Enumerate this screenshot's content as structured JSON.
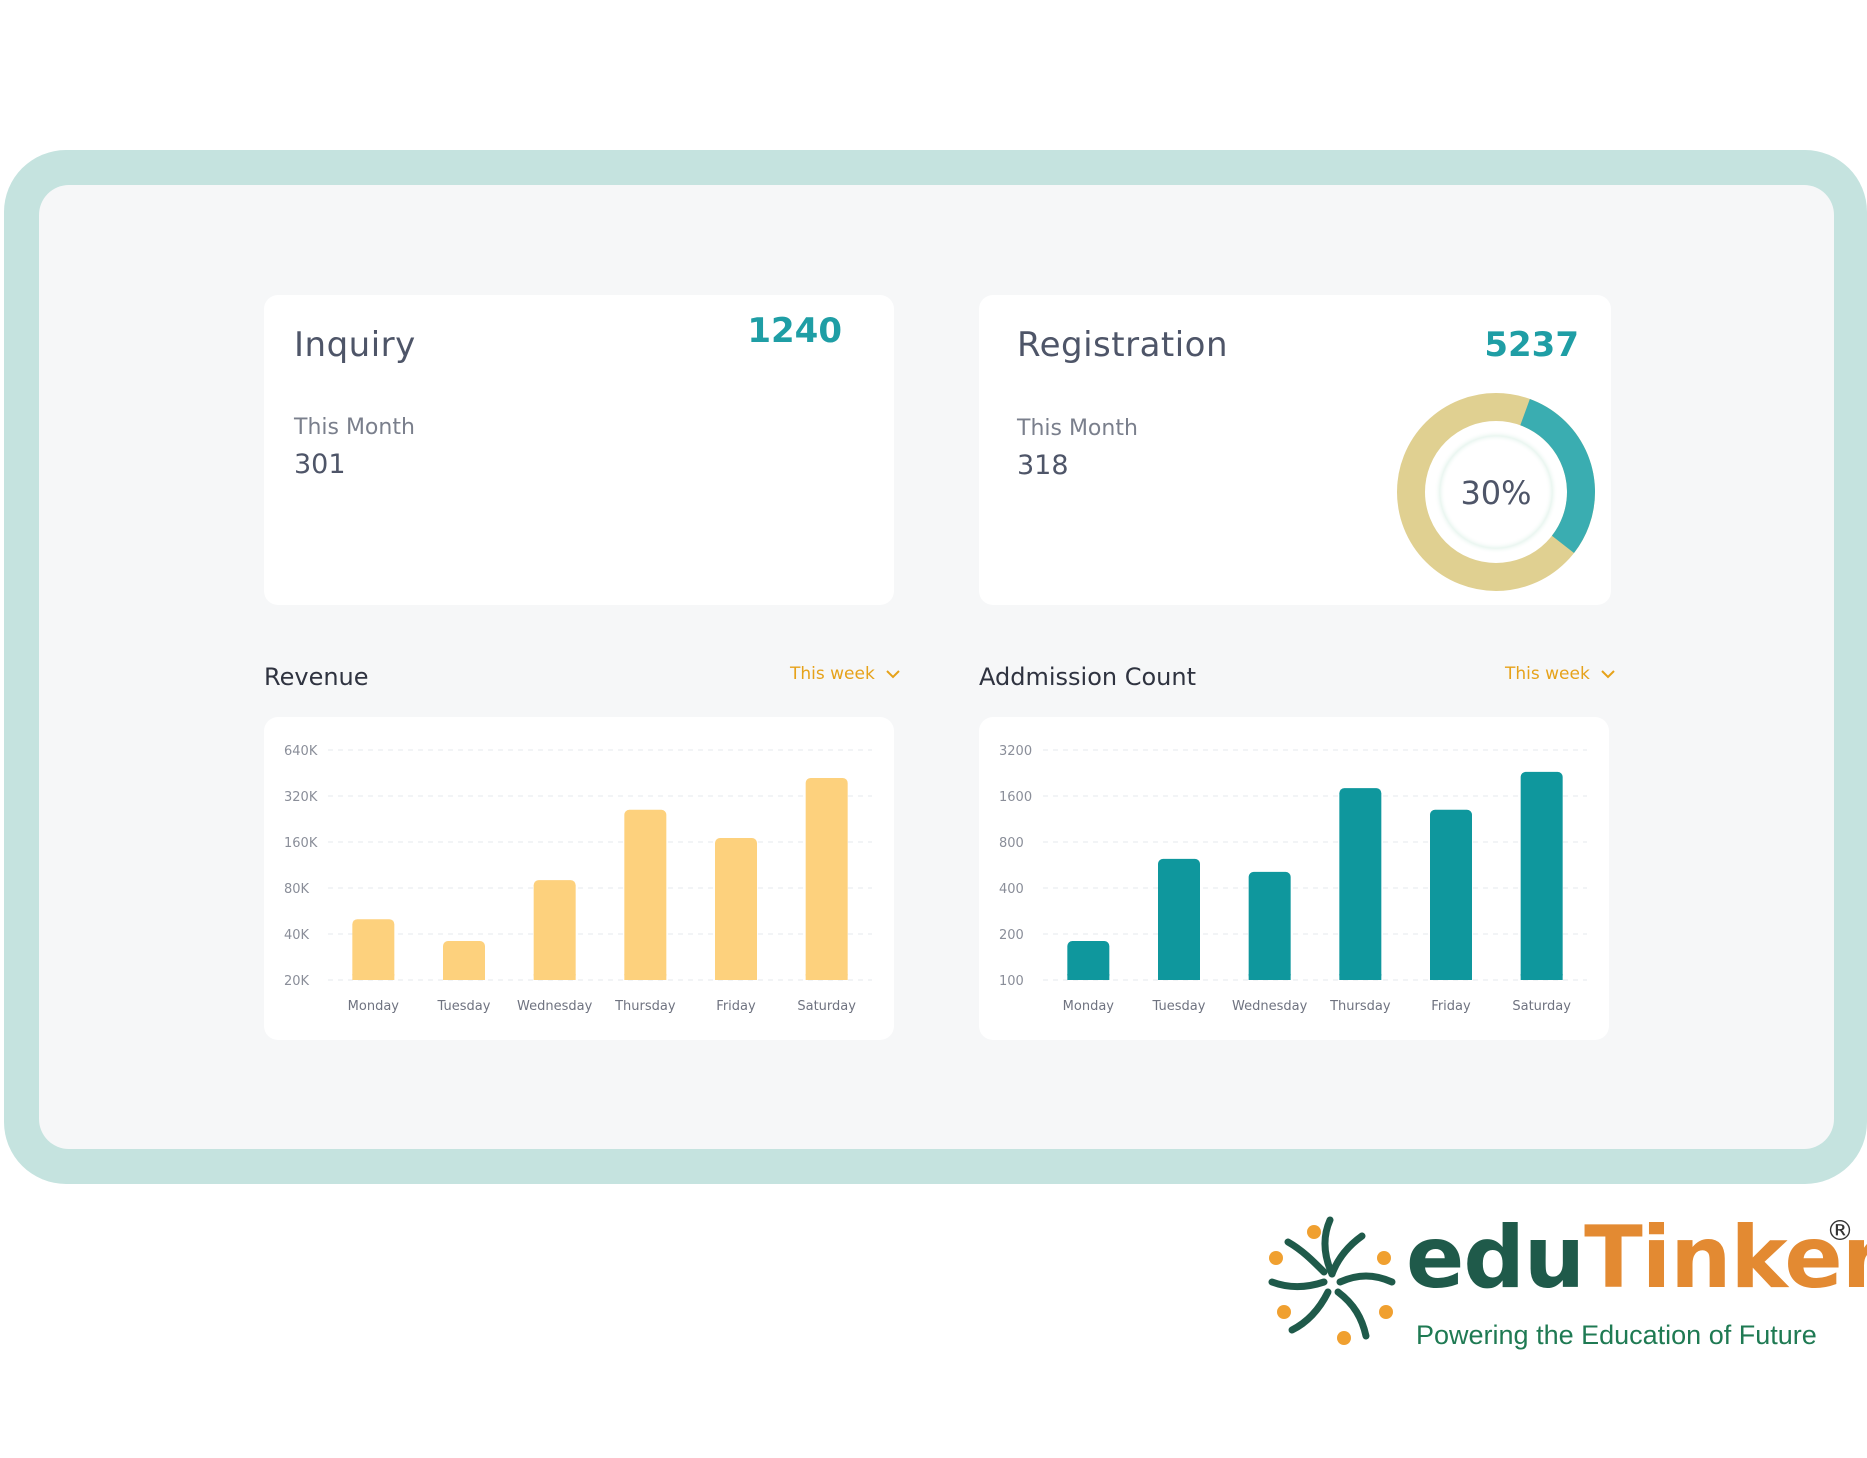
{
  "inquiry": {
    "title": "Inquiry",
    "total": "1240",
    "sub_label": "This Month",
    "sub_value": "301"
  },
  "registration": {
    "title": "Registration",
    "total": "5237",
    "sub_label": "This Month",
    "sub_value": "318",
    "donut_label": "30%",
    "donut_fraction": 0.3,
    "donut_colors": {
      "fill": "#3aadb1",
      "track": "#e0d091"
    }
  },
  "revenue": {
    "title": "Revenue",
    "range": "This week"
  },
  "admission": {
    "title": "Addmission Count",
    "range": "This week"
  },
  "colors": {
    "teal": "#1f9ea5",
    "bar_yellow": "#fdd17d",
    "bar_teal": "#0f979d",
    "accent_orange": "#e6a21a",
    "frame": "#c5e3df"
  },
  "chart_data": [
    {
      "type": "bar",
      "title": "Revenue",
      "scale": "log",
      "categories": [
        "Monday",
        "Tuesday",
        "Wednesday",
        "Thursday",
        "Friday",
        "Saturday"
      ],
      "yticks": [
        "640K",
        "320K",
        "160K",
        "80K",
        "40K",
        "20K"
      ],
      "ytick_values": [
        640000,
        320000,
        160000,
        80000,
        40000,
        20000
      ],
      "values": [
        50000,
        36000,
        90000,
        260000,
        170000,
        420000
      ],
      "grid": true,
      "color": "#fdd17d"
    },
    {
      "type": "bar",
      "title": "Addmission Count",
      "scale": "log",
      "categories": [
        "Monday",
        "Tuesday",
        "Wednesday",
        "Thursday",
        "Friday",
        "Saturday"
      ],
      "yticks": [
        "3200",
        "1600",
        "800",
        "400",
        "200",
        "100"
      ],
      "ytick_values": [
        3200,
        1600,
        800,
        400,
        200,
        100
      ],
      "values": [
        180,
        620,
        510,
        1800,
        1300,
        2300
      ],
      "grid": true,
      "color": "#0f979d"
    }
  ],
  "logo": {
    "brand_part1": "edu",
    "brand_part2": "Tinker",
    "registered": "®",
    "tagline": "Powering the Education of Future"
  }
}
